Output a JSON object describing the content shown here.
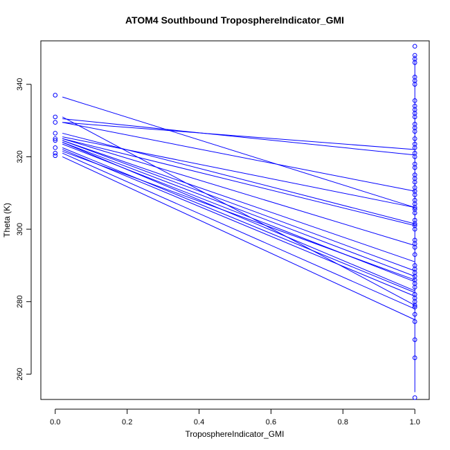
{
  "chart_data": {
    "type": "line",
    "title": "ATOM4 Southbound TroposphereIndicator_GMI",
    "xlabel": "TroposphereIndicator_GMI",
    "ylabel": "Theta (K)",
    "xlim": [
      -0.04,
      1.04
    ],
    "ylim": [
      253,
      352
    ],
    "xticks": [
      "0.0",
      "0.2",
      "0.4",
      "0.6",
      "0.8",
      "1.0"
    ],
    "xtick_values": [
      0,
      0.2,
      0.4,
      0.6,
      0.8,
      1.0
    ],
    "yticks": [
      "260",
      "280",
      "300",
      "320",
      "340"
    ],
    "ytick_values": [
      260,
      280,
      300,
      320,
      340
    ],
    "series_color": "#0000ff",
    "grid": false,
    "segments": [
      [
        0.02,
        336.5,
        1.0,
        306.0
      ],
      [
        0.02,
        330.5,
        1.0,
        320.5
      ],
      [
        0.02,
        329.5,
        1.0,
        322.0
      ],
      [
        0.02,
        331.0,
        1.0,
        279.0
      ],
      [
        0.02,
        329.5,
        1.0,
        310.5
      ],
      [
        0.02,
        326.5,
        1.0,
        301.5
      ],
      [
        0.02,
        325.5,
        1.0,
        306.0
      ],
      [
        0.02,
        325.0,
        1.0,
        301.0
      ],
      [
        0.02,
        325.0,
        1.0,
        295.5
      ],
      [
        0.02,
        324.5,
        1.0,
        291.0
      ],
      [
        0.02,
        324.5,
        1.0,
        288.5
      ],
      [
        0.02,
        324.0,
        1.0,
        287.0
      ],
      [
        0.02,
        324.0,
        1.0,
        283.0
      ],
      [
        0.02,
        323.5,
        1.0,
        285.5
      ],
      [
        0.02,
        322.5,
        1.0,
        282.5
      ],
      [
        0.02,
        322.0,
        1.0,
        281.5
      ],
      [
        0.02,
        321.5,
        1.0,
        286.0
      ],
      [
        0.02,
        321.0,
        1.0,
        278.0
      ],
      [
        0.02,
        320.0,
        1.0,
        275.0
      ]
    ],
    "vertical_segment": [
      1.0,
      255.0,
      1.0,
      348.0
    ],
    "points_x0": [
      337.0,
      331.0,
      329.5,
      326.5,
      325.0,
      324.5,
      322.5,
      321.0,
      320.3
    ],
    "points_x1": [
      350.5,
      348.0,
      347.0,
      346.0,
      342.0,
      341.0,
      340.0,
      335.5,
      334.0,
      333.0,
      332.0,
      331.0,
      329.0,
      328.0,
      327.0,
      325.0,
      323.5,
      322.5,
      321.0,
      320.0,
      318.0,
      317.0,
      315.0,
      314.0,
      313.0,
      311.5,
      310.5,
      309.5,
      308.0,
      307.0,
      306.0,
      305.5,
      304.5,
      302.5,
      301.5,
      301.0,
      300.0,
      297.0,
      296.0,
      295.0,
      293.0,
      290.0,
      289.0,
      288.0,
      287.0,
      286.0,
      285.0,
      284.0,
      282.0,
      281.0,
      280.0,
      279.0,
      278.5,
      276.5,
      274.5,
      269.5,
      264.5,
      253.5
    ]
  }
}
